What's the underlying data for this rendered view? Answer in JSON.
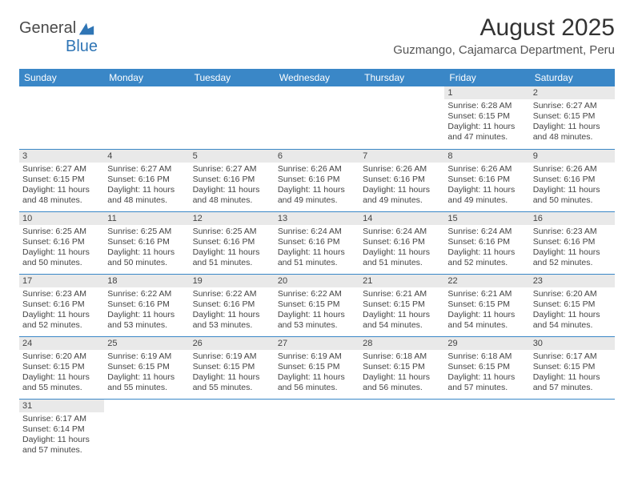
{
  "logo": {
    "general": "General",
    "blue": "Blue"
  },
  "title": "August 2025",
  "location": "Guzmango, Cajamarca Department, Peru",
  "colors": {
    "header_bg": "#3a87c7",
    "header_text": "#ffffff",
    "daynum_bg": "#e9e9e9",
    "row_border": "#3a87c7",
    "logo_blue": "#2f75b5",
    "text": "#444444"
  },
  "weekdays": [
    "Sunday",
    "Monday",
    "Tuesday",
    "Wednesday",
    "Thursday",
    "Friday",
    "Saturday"
  ],
  "days": {
    "1": {
      "sunrise": "6:28 AM",
      "sunset": "6:15 PM",
      "daylight": "11 hours and 47 minutes."
    },
    "2": {
      "sunrise": "6:27 AM",
      "sunset": "6:15 PM",
      "daylight": "11 hours and 48 minutes."
    },
    "3": {
      "sunrise": "6:27 AM",
      "sunset": "6:15 PM",
      "daylight": "11 hours and 48 minutes."
    },
    "4": {
      "sunrise": "6:27 AM",
      "sunset": "6:16 PM",
      "daylight": "11 hours and 48 minutes."
    },
    "5": {
      "sunrise": "6:27 AM",
      "sunset": "6:16 PM",
      "daylight": "11 hours and 48 minutes."
    },
    "6": {
      "sunrise": "6:26 AM",
      "sunset": "6:16 PM",
      "daylight": "11 hours and 49 minutes."
    },
    "7": {
      "sunrise": "6:26 AM",
      "sunset": "6:16 PM",
      "daylight": "11 hours and 49 minutes."
    },
    "8": {
      "sunrise": "6:26 AM",
      "sunset": "6:16 PM",
      "daylight": "11 hours and 49 minutes."
    },
    "9": {
      "sunrise": "6:26 AM",
      "sunset": "6:16 PM",
      "daylight": "11 hours and 50 minutes."
    },
    "10": {
      "sunrise": "6:25 AM",
      "sunset": "6:16 PM",
      "daylight": "11 hours and 50 minutes."
    },
    "11": {
      "sunrise": "6:25 AM",
      "sunset": "6:16 PM",
      "daylight": "11 hours and 50 minutes."
    },
    "12": {
      "sunrise": "6:25 AM",
      "sunset": "6:16 PM",
      "daylight": "11 hours and 51 minutes."
    },
    "13": {
      "sunrise": "6:24 AM",
      "sunset": "6:16 PM",
      "daylight": "11 hours and 51 minutes."
    },
    "14": {
      "sunrise": "6:24 AM",
      "sunset": "6:16 PM",
      "daylight": "11 hours and 51 minutes."
    },
    "15": {
      "sunrise": "6:24 AM",
      "sunset": "6:16 PM",
      "daylight": "11 hours and 52 minutes."
    },
    "16": {
      "sunrise": "6:23 AM",
      "sunset": "6:16 PM",
      "daylight": "11 hours and 52 minutes."
    },
    "17": {
      "sunrise": "6:23 AM",
      "sunset": "6:16 PM",
      "daylight": "11 hours and 52 minutes."
    },
    "18": {
      "sunrise": "6:22 AM",
      "sunset": "6:16 PM",
      "daylight": "11 hours and 53 minutes."
    },
    "19": {
      "sunrise": "6:22 AM",
      "sunset": "6:16 PM",
      "daylight": "11 hours and 53 minutes."
    },
    "20": {
      "sunrise": "6:22 AM",
      "sunset": "6:15 PM",
      "daylight": "11 hours and 53 minutes."
    },
    "21": {
      "sunrise": "6:21 AM",
      "sunset": "6:15 PM",
      "daylight": "11 hours and 54 minutes."
    },
    "22": {
      "sunrise": "6:21 AM",
      "sunset": "6:15 PM",
      "daylight": "11 hours and 54 minutes."
    },
    "23": {
      "sunrise": "6:20 AM",
      "sunset": "6:15 PM",
      "daylight": "11 hours and 54 minutes."
    },
    "24": {
      "sunrise": "6:20 AM",
      "sunset": "6:15 PM",
      "daylight": "11 hours and 55 minutes."
    },
    "25": {
      "sunrise": "6:19 AM",
      "sunset": "6:15 PM",
      "daylight": "11 hours and 55 minutes."
    },
    "26": {
      "sunrise": "6:19 AM",
      "sunset": "6:15 PM",
      "daylight": "11 hours and 55 minutes."
    },
    "27": {
      "sunrise": "6:19 AM",
      "sunset": "6:15 PM",
      "daylight": "11 hours and 56 minutes."
    },
    "28": {
      "sunrise": "6:18 AM",
      "sunset": "6:15 PM",
      "daylight": "11 hours and 56 minutes."
    },
    "29": {
      "sunrise": "6:18 AM",
      "sunset": "6:15 PM",
      "daylight": "11 hours and 57 minutes."
    },
    "30": {
      "sunrise": "6:17 AM",
      "sunset": "6:15 PM",
      "daylight": "11 hours and 57 minutes."
    },
    "31": {
      "sunrise": "6:17 AM",
      "sunset": "6:14 PM",
      "daylight": "11 hours and 57 minutes."
    }
  },
  "grid": [
    [
      0,
      0,
      0,
      0,
      0,
      1,
      2
    ],
    [
      3,
      4,
      5,
      6,
      7,
      8,
      9
    ],
    [
      10,
      11,
      12,
      13,
      14,
      15,
      16
    ],
    [
      17,
      18,
      19,
      20,
      21,
      22,
      23
    ],
    [
      24,
      25,
      26,
      27,
      28,
      29,
      30
    ],
    [
      31,
      0,
      0,
      0,
      0,
      0,
      0
    ]
  ],
  "labels": {
    "sunrise": "Sunrise: ",
    "sunset": "Sunset: ",
    "daylight": "Daylight: "
  }
}
